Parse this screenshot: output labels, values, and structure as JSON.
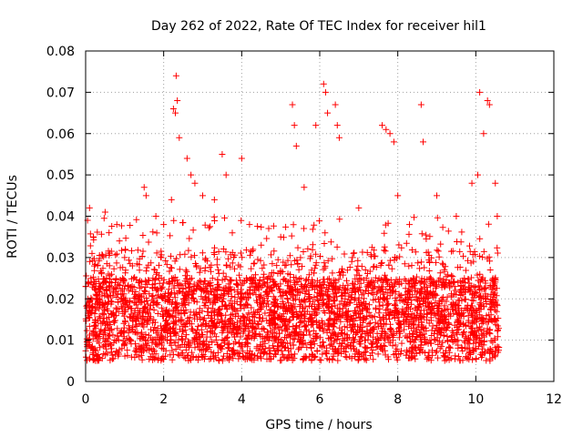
{
  "chart_data": {
    "type": "scatter",
    "title": "Day 262 of 2022, Rate Of TEC Index for receiver hil1",
    "xlabel": "GPS time / hours",
    "ylabel": "ROTI / TECUs",
    "xlim": [
      0,
      12
    ],
    "ylim": [
      0,
      0.08
    ],
    "xticks": [
      0,
      2,
      4,
      6,
      8,
      10,
      12
    ],
    "xtick_labels": [
      "0",
      "2",
      "4",
      "6",
      "8",
      "10",
      "12"
    ],
    "yticks": [
      0,
      0.01,
      0.02,
      0.03,
      0.04,
      0.05,
      0.06,
      0.07,
      0.08
    ],
    "ytick_labels": [
      "0",
      "0.01",
      "0.02",
      "0.03",
      "0.04",
      "0.05",
      "0.06",
      "0.07",
      "0.08"
    ],
    "grid": true,
    "marker": "+",
    "marker_color": "#ff0000",
    "data_range_hours": [
      0.0,
      10.6
    ],
    "series": [
      {
        "name": "ROTI",
        "points": [
          [
            0.05,
            0.039
          ],
          [
            0.1,
            0.042
          ],
          [
            0.2,
            0.035
          ],
          [
            0.5,
            0.041
          ],
          [
            0.6,
            0.036
          ],
          [
            0.8,
            0.038
          ],
          [
            1.0,
            0.03
          ],
          [
            1.2,
            0.028
          ],
          [
            1.5,
            0.047
          ],
          [
            1.55,
            0.045
          ],
          [
            1.8,
            0.04
          ],
          [
            2.0,
            0.038
          ],
          [
            2.2,
            0.044
          ],
          [
            2.25,
            0.066
          ],
          [
            2.3,
            0.065
          ],
          [
            2.32,
            0.074
          ],
          [
            2.35,
            0.068
          ],
          [
            2.4,
            0.059
          ],
          [
            2.6,
            0.054
          ],
          [
            2.7,
            0.05
          ],
          [
            2.8,
            0.048
          ],
          [
            3.0,
            0.045
          ],
          [
            3.3,
            0.044
          ],
          [
            3.5,
            0.055
          ],
          [
            3.6,
            0.05
          ],
          [
            4.0,
            0.054
          ],
          [
            4.2,
            0.038
          ],
          [
            4.5,
            0.033
          ],
          [
            5.0,
            0.035
          ],
          [
            5.3,
            0.067
          ],
          [
            5.35,
            0.062
          ],
          [
            5.4,
            0.057
          ],
          [
            5.6,
            0.047
          ],
          [
            5.9,
            0.062
          ],
          [
            6.1,
            0.072
          ],
          [
            6.15,
            0.07
          ],
          [
            6.2,
            0.065
          ],
          [
            6.4,
            0.067
          ],
          [
            6.45,
            0.062
          ],
          [
            6.5,
            0.059
          ],
          [
            7.0,
            0.042
          ],
          [
            7.6,
            0.062
          ],
          [
            7.7,
            0.061
          ],
          [
            7.8,
            0.06
          ],
          [
            7.9,
            0.058
          ],
          [
            8.0,
            0.045
          ],
          [
            8.3,
            0.038
          ],
          [
            8.6,
            0.067
          ],
          [
            8.65,
            0.058
          ],
          [
            9.0,
            0.045
          ],
          [
            9.5,
            0.04
          ],
          [
            9.9,
            0.048
          ],
          [
            10.05,
            0.05
          ],
          [
            10.1,
            0.07
          ],
          [
            10.2,
            0.06
          ],
          [
            10.3,
            0.068
          ],
          [
            10.35,
            0.067
          ],
          [
            10.5,
            0.048
          ],
          [
            10.55,
            0.04
          ]
        ],
        "band_description": "dense band of points between 0.005 and 0.03 TECUs from 0 to 10.6 hours"
      }
    ]
  }
}
